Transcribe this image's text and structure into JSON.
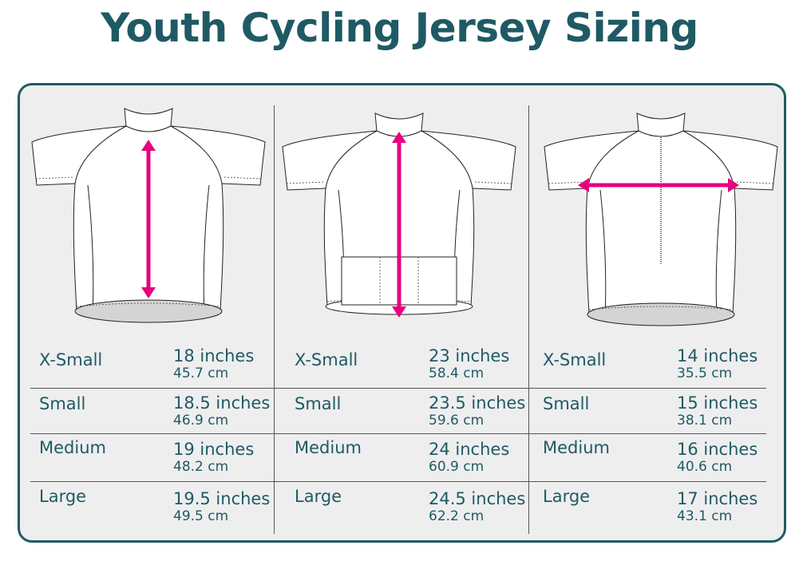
{
  "title": "Youth Cycling  Jersey Sizing",
  "colors": {
    "brand": "#1f5a64",
    "arrow": "#e6007e",
    "panel": "#eeeeef"
  },
  "columns": [
    {
      "view": "front-length",
      "rows": [
        {
          "size": "X-Small",
          "inches": "18 inches",
          "cm": "45.7 cm"
        },
        {
          "size": "Small",
          "inches": "18.5 inches",
          "cm": "46.9 cm"
        },
        {
          "size": "Medium",
          "inches": "19 inches",
          "cm": "48.2 cm"
        },
        {
          "size": "Large",
          "inches": "19.5 inches",
          "cm": "49.5 cm"
        }
      ]
    },
    {
      "view": "back-length",
      "rows": [
        {
          "size": "X-Small",
          "inches": "23 inches",
          "cm": "58.4 cm"
        },
        {
          "size": "Small",
          "inches": "23.5 inches",
          "cm": "59.6 cm"
        },
        {
          "size": "Medium",
          "inches": "24 inches",
          "cm": "60.9 cm"
        },
        {
          "size": "Large",
          "inches": "24.5 inches",
          "cm": "62.2 cm"
        }
      ]
    },
    {
      "view": "chest-width",
      "rows": [
        {
          "size": "X-Small",
          "inches": "14 inches",
          "cm": "35.5 cm"
        },
        {
          "size": "Small",
          "inches": "15 inches",
          "cm": "38.1 cm"
        },
        {
          "size": "Medium",
          "inches": "16 inches",
          "cm": "40.6 cm"
        },
        {
          "size": "Large",
          "inches": "17 inches",
          "cm": "43.1 cm"
        }
      ]
    }
  ]
}
